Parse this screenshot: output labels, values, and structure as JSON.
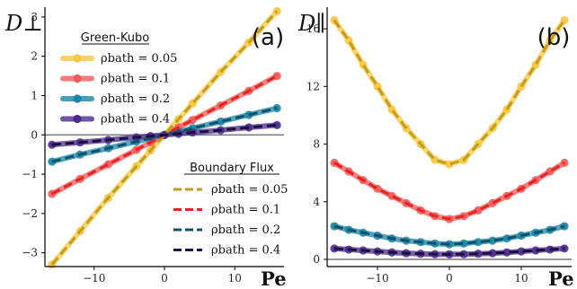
{
  "chart_data": [
    {
      "type": "line",
      "panel_label": "(a)",
      "ylabel": "D⊥",
      "xlabel": "Pe",
      "xlim": [
        -17,
        17
      ],
      "ylim": [
        -3.35,
        3.25
      ],
      "xticks": [
        -10,
        0,
        10
      ],
      "yticks": [
        -3,
        -2,
        -1,
        0,
        1,
        2,
        3
      ],
      "x": [
        -16,
        -12,
        -8,
        -4,
        -2,
        0,
        2,
        4,
        8,
        12,
        16
      ],
      "reference_line": 0,
      "legend_green_kubo": {
        "title": "Green-Kubo",
        "placement": "top-left"
      },
      "legend_boundary_flux": {
        "title": "Boundary Flux",
        "placement": "bottom-right"
      },
      "series": [
        {
          "name": "ρbath = 0.05",
          "method": "Green-Kubo",
          "style": "solid-markers",
          "color": "#f5c842",
          "values": [
            -3.3,
            -2.45,
            -1.6,
            -0.8,
            -0.4,
            0.0,
            0.4,
            0.8,
            1.6,
            2.35,
            3.15
          ]
        },
        {
          "name": "ρbath = 0.1",
          "method": "Green-Kubo",
          "style": "solid-markers",
          "color": "#f25a5a",
          "values": [
            -1.5,
            -1.12,
            -0.75,
            -0.38,
            -0.19,
            0.0,
            0.19,
            0.38,
            0.75,
            1.12,
            1.5
          ]
        },
        {
          "name": "ρbath = 0.2",
          "method": "Green-Kubo",
          "style": "solid-markers",
          "color": "#1a86a6",
          "values": [
            -0.68,
            -0.5,
            -0.34,
            -0.17,
            -0.08,
            0.0,
            0.08,
            0.17,
            0.34,
            0.51,
            0.68
          ]
        },
        {
          "name": "ρbath = 0.4",
          "method": "Green-Kubo",
          "style": "solid-markers",
          "color": "#4b2a8c",
          "values": [
            -0.25,
            -0.19,
            -0.13,
            -0.06,
            -0.03,
            0.0,
            0.03,
            0.06,
            0.12,
            0.19,
            0.25
          ]
        },
        {
          "name": "ρbath = 0.05",
          "method": "Boundary Flux",
          "style": "dashed",
          "color": "#c79a1c",
          "values": [
            -3.3,
            -2.45,
            -1.6,
            -0.8,
            -0.4,
            0.0,
            0.4,
            0.8,
            1.6,
            2.35,
            3.15
          ]
        },
        {
          "name": "ρbath = 0.1",
          "method": "Boundary Flux",
          "style": "dashed",
          "color": "#e8231f",
          "values": [
            -1.5,
            -1.12,
            -0.75,
            -0.38,
            -0.19,
            0.0,
            0.19,
            0.38,
            0.75,
            1.12,
            1.5
          ]
        },
        {
          "name": "ρbath = 0.2",
          "method": "Boundary Flux",
          "style": "dashed",
          "color": "#0f4f6b",
          "values": [
            -0.68,
            -0.5,
            -0.34,
            -0.17,
            -0.08,
            0.0,
            0.08,
            0.17,
            0.34,
            0.51,
            0.68
          ]
        },
        {
          "name": "ρbath = 0.4",
          "method": "Boundary Flux",
          "style": "dashed",
          "color": "#1a1040",
          "values": [
            -0.25,
            -0.19,
            -0.13,
            -0.06,
            -0.03,
            0.0,
            0.03,
            0.06,
            0.12,
            0.19,
            0.25
          ]
        }
      ]
    },
    {
      "type": "line",
      "panel_label": "(b)",
      "ylabel": "D∥",
      "xlabel": "Pe",
      "xlim": [
        -17,
        17
      ],
      "ylim": [
        -0.5,
        17.5
      ],
      "xticks": [
        -10,
        0,
        10
      ],
      "yticks": [
        0,
        4,
        8,
        12,
        16
      ],
      "x": [
        -16,
        -14,
        -12,
        -10,
        -8,
        -6,
        -4,
        -2,
        0,
        2,
        4,
        6,
        8,
        10,
        12,
        14,
        16
      ],
      "reference_line": 0,
      "series": [
        {
          "name": "ρbath = 0.05",
          "method": "Green-Kubo",
          "style": "solid-markers",
          "color": "#f5c842",
          "values": [
            16.6,
            15.2,
            13.5,
            12.0,
            10.4,
            9.1,
            8.0,
            6.9,
            6.6,
            6.9,
            8.0,
            9.1,
            10.4,
            12.0,
            13.5,
            15.2,
            16.6
          ]
        },
        {
          "name": "ρbath = 0.1",
          "method": "Green-Kubo",
          "style": "solid-markers",
          "color": "#f25a5a",
          "values": [
            6.7,
            6.1,
            5.5,
            4.9,
            4.4,
            3.9,
            3.4,
            3.0,
            2.8,
            3.0,
            3.4,
            3.9,
            4.4,
            4.9,
            5.5,
            6.1,
            6.7
          ]
        },
        {
          "name": "ρbath = 0.2",
          "method": "Green-Kubo",
          "style": "solid-markers",
          "color": "#1a86a6",
          "values": [
            2.3,
            2.05,
            1.85,
            1.65,
            1.45,
            1.3,
            1.2,
            1.1,
            1.05,
            1.1,
            1.2,
            1.3,
            1.45,
            1.65,
            1.85,
            2.05,
            2.3
          ]
        },
        {
          "name": "ρbath = 0.4",
          "method": "Green-Kubo",
          "style": "solid-markers",
          "color": "#4b2a8c",
          "values": [
            0.75,
            0.68,
            0.62,
            0.55,
            0.48,
            0.43,
            0.39,
            0.36,
            0.35,
            0.36,
            0.39,
            0.43,
            0.48,
            0.55,
            0.62,
            0.68,
            0.75
          ]
        },
        {
          "name": "ρbath = 0.05",
          "method": "Boundary Flux",
          "style": "dashed",
          "color": "#c79a1c",
          "values": [
            16.6,
            15.2,
            13.5,
            12.0,
            10.4,
            9.1,
            8.0,
            6.9,
            6.6,
            6.9,
            8.0,
            9.1,
            10.4,
            12.0,
            13.5,
            15.2,
            16.6
          ]
        },
        {
          "name": "ρbath = 0.1",
          "method": "Boundary Flux",
          "style": "dashed",
          "color": "#e8231f",
          "values": [
            6.7,
            6.1,
            5.5,
            4.9,
            4.4,
            3.9,
            3.4,
            3.0,
            2.8,
            3.0,
            3.4,
            3.9,
            4.4,
            4.9,
            5.5,
            6.1,
            6.7
          ]
        },
        {
          "name": "ρbath = 0.2",
          "method": "Boundary Flux",
          "style": "dashed",
          "color": "#0f4f6b",
          "values": [
            2.3,
            2.05,
            1.85,
            1.65,
            1.45,
            1.3,
            1.2,
            1.1,
            1.05,
            1.1,
            1.2,
            1.3,
            1.45,
            1.65,
            1.85,
            2.05,
            2.3
          ]
        },
        {
          "name": "ρbath = 0.4",
          "method": "Boundary Flux",
          "style": "dashed",
          "color": "#1a1040",
          "values": [
            0.75,
            0.68,
            0.62,
            0.55,
            0.48,
            0.43,
            0.39,
            0.36,
            0.35,
            0.36,
            0.39,
            0.43,
            0.48,
            0.55,
            0.62,
            0.68,
            0.75
          ]
        }
      ]
    }
  ],
  "colors": {
    "axis": "#000000",
    "zero_line": "#808080"
  }
}
